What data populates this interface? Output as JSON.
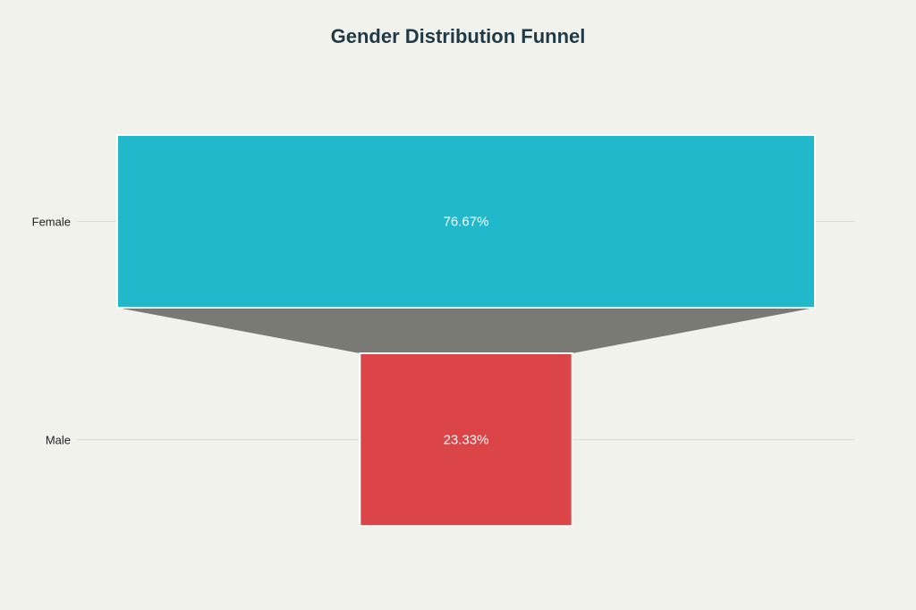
{
  "chart_data": {
    "type": "funnel",
    "title": "Gender Distribution Funnel",
    "categories": [
      "Female",
      "Male"
    ],
    "values": [
      76.67,
      23.33
    ],
    "value_labels": [
      "76.67%",
      "23.33%"
    ],
    "colors": [
      "#21b8cc",
      "#db4547"
    ],
    "connector_color": "#7a7a75",
    "grid": true
  }
}
